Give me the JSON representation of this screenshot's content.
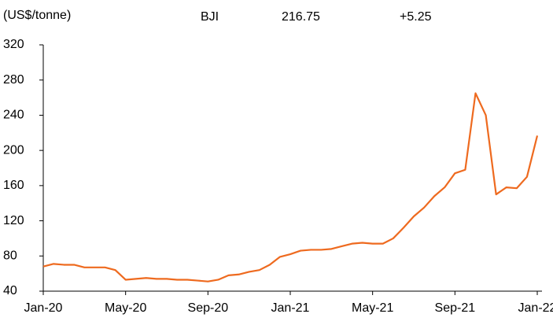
{
  "chart_data": {
    "type": "line",
    "unit_label": "(US$/tonne)",
    "header": {
      "name": "BJI",
      "last": "216.75",
      "change": "+5.25"
    },
    "categories": [
      "Jan-20",
      null,
      null,
      null,
      null,
      null,
      null,
      null,
      "May-20",
      null,
      null,
      null,
      null,
      null,
      null,
      null,
      "Sep-20",
      null,
      null,
      null,
      null,
      null,
      null,
      null,
      "Jan-21",
      null,
      null,
      null,
      null,
      null,
      null,
      null,
      "May-21",
      null,
      null,
      null,
      null,
      null,
      null,
      null,
      "Sep-21",
      null,
      null,
      null,
      null,
      null,
      null,
      null,
      "Jan-22"
    ],
    "series": [
      {
        "name": "BJI",
        "color": "#ee6a1f",
        "values": [
          68,
          71,
          70,
          70,
          67,
          67,
          67,
          64,
          53,
          54,
          55,
          54,
          54,
          53,
          53,
          52,
          51,
          53,
          58,
          59,
          62,
          64,
          70,
          79,
          82,
          86,
          87,
          87,
          88,
          91,
          94,
          95,
          94,
          94,
          100,
          112,
          125,
          135,
          148,
          158,
          174,
          178,
          265,
          240,
          150,
          158,
          157,
          170,
          216.75
        ]
      }
    ],
    "ylim": [
      40,
      320
    ],
    "yticks": [
      40,
      80,
      120,
      160,
      200,
      240,
      280,
      320
    ],
    "xticks": [
      0,
      8,
      16,
      24,
      32,
      40,
      48
    ]
  }
}
